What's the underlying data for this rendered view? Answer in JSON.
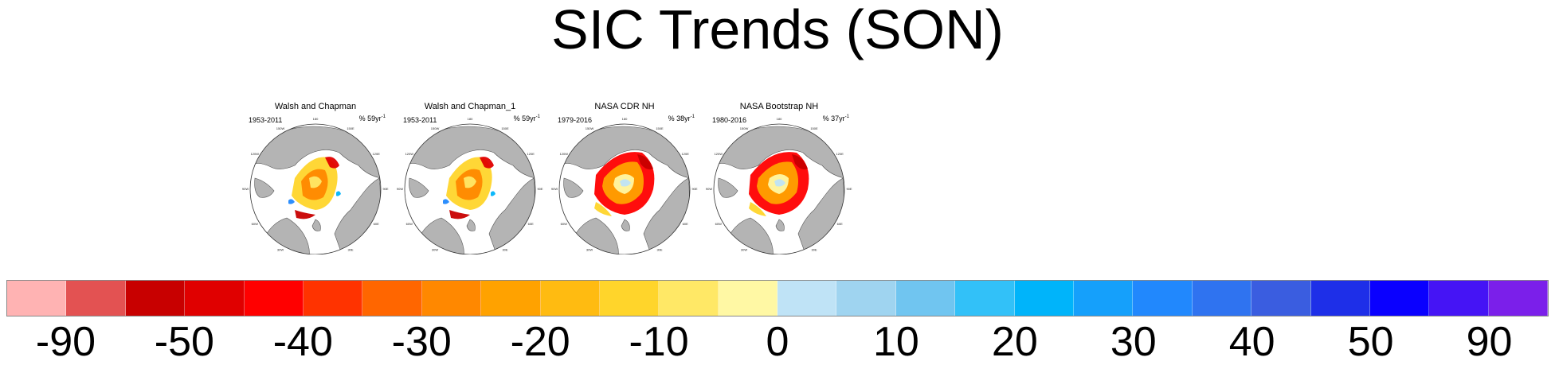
{
  "title": "SIC Trends (SON)",
  "panels": [
    {
      "title": "Walsh and Chapman",
      "years": "1953-2011",
      "units_prefix": "% 59yr",
      "units_exp": "-1",
      "style": "walsh"
    },
    {
      "title": "Walsh and Chapman_1",
      "years": "1953-2011",
      "units_prefix": "% 59yr",
      "units_exp": "-1",
      "style": "walsh"
    },
    {
      "title": "NASA CDR NH",
      "years": "1979-2016",
      "units_prefix": "% 38yr",
      "units_exp": "-1",
      "style": "nasa"
    },
    {
      "title": "NASA Bootstrap NH",
      "years": "1980-2016",
      "units_prefix": "% 37yr",
      "units_exp": "-1",
      "style": "nasa"
    }
  ],
  "map_graticule_labels": [
    "180",
    "150E",
    "150W",
    "120E",
    "120W",
    "90E",
    "90W",
    "60E",
    "60W",
    "30E",
    "30W",
    "0"
  ],
  "colorbar": {
    "colors": [
      "#ffb3b3",
      "#e35252",
      "#c80000",
      "#e00000",
      "#ff0000",
      "#ff3300",
      "#ff6600",
      "#ff8800",
      "#ffa200",
      "#ffbb11",
      "#ffd52b",
      "#ffe866",
      "#fff8a4",
      "#bfe3f6",
      "#9fd4f0",
      "#70c5f0",
      "#32c1f8",
      "#00b4fa",
      "#15a0fb",
      "#2188fd",
      "#2f73f0",
      "#3a5de0",
      "#1e2fe8",
      "#0a00ff",
      "#4514f5",
      "#7b1fea"
    ],
    "labels": [
      "-90",
      "-50",
      "-40",
      "-30",
      "-20",
      "-10",
      "0",
      "10",
      "20",
      "30",
      "40",
      "50",
      "90"
    ]
  }
}
